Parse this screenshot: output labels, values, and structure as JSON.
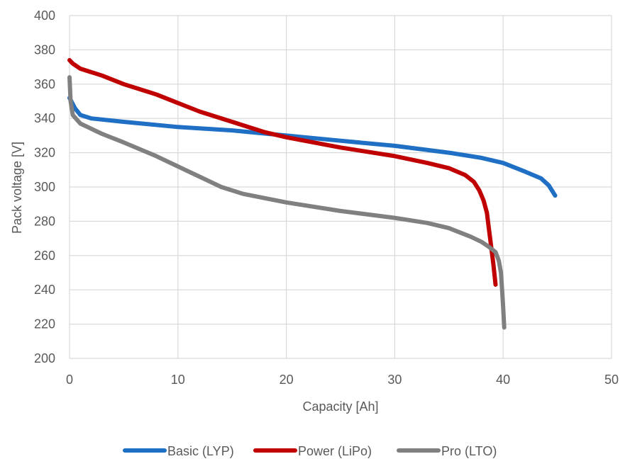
{
  "chart_data": {
    "type": "line",
    "title": "",
    "xlabel": "Capacity [Ah]",
    "ylabel": "Pack voltage [V]",
    "xlim": [
      0,
      50
    ],
    "ylim": [
      200,
      400
    ],
    "xticks": [
      0,
      10,
      20,
      30,
      40,
      50
    ],
    "yticks": [
      200,
      220,
      240,
      260,
      280,
      300,
      320,
      340,
      360,
      380,
      400
    ],
    "grid": true,
    "legend_position": "bottom",
    "series": [
      {
        "name": "Basic (LYP)",
        "color": "#1f6fc5",
        "points": [
          [
            0,
            352
          ],
          [
            0.5,
            346
          ],
          [
            1,
            342
          ],
          [
            2,
            340
          ],
          [
            5,
            338
          ],
          [
            10,
            335
          ],
          [
            15,
            333
          ],
          [
            20,
            330
          ],
          [
            25,
            327
          ],
          [
            30,
            324
          ],
          [
            35,
            320
          ],
          [
            38,
            317
          ],
          [
            40,
            314
          ],
          [
            42,
            309
          ],
          [
            43.5,
            305
          ],
          [
            44.2,
            301
          ],
          [
            44.8,
            295
          ]
        ]
      },
      {
        "name": "Power (LiPo)",
        "color": "#c00000",
        "points": [
          [
            0,
            374
          ],
          [
            0.3,
            372
          ],
          [
            1,
            369
          ],
          [
            3,
            365
          ],
          [
            5,
            360
          ],
          [
            8,
            354
          ],
          [
            10,
            349
          ],
          [
            12,
            344
          ],
          [
            15,
            338
          ],
          [
            18,
            332
          ],
          [
            20,
            329
          ],
          [
            25,
            323
          ],
          [
            30,
            318
          ],
          [
            33,
            314
          ],
          [
            35,
            311
          ],
          [
            36.5,
            307
          ],
          [
            37.3,
            303
          ],
          [
            37.8,
            298
          ],
          [
            38.2,
            292
          ],
          [
            38.5,
            285
          ],
          [
            38.7,
            275
          ],
          [
            38.9,
            265
          ],
          [
            39.1,
            255
          ],
          [
            39.3,
            243
          ]
        ]
      },
      {
        "name": "Pro (LTO)",
        "color": "#808080",
        "points": [
          [
            0,
            364
          ],
          [
            0.1,
            350
          ],
          [
            0.3,
            342
          ],
          [
            1,
            337
          ],
          [
            3,
            331
          ],
          [
            5,
            326
          ],
          [
            8,
            318
          ],
          [
            10,
            312
          ],
          [
            12,
            306
          ],
          [
            14,
            300
          ],
          [
            16,
            296
          ],
          [
            20,
            291
          ],
          [
            25,
            286
          ],
          [
            30,
            282
          ],
          [
            33,
            279
          ],
          [
            35,
            276
          ],
          [
            37,
            271
          ],
          [
            38,
            268
          ],
          [
            38.7,
            265
          ],
          [
            39.3,
            262
          ],
          [
            39.6,
            257
          ],
          [
            39.8,
            250
          ],
          [
            39.9,
            240
          ],
          [
            40,
            230
          ],
          [
            40.1,
            218
          ]
        ]
      }
    ]
  }
}
